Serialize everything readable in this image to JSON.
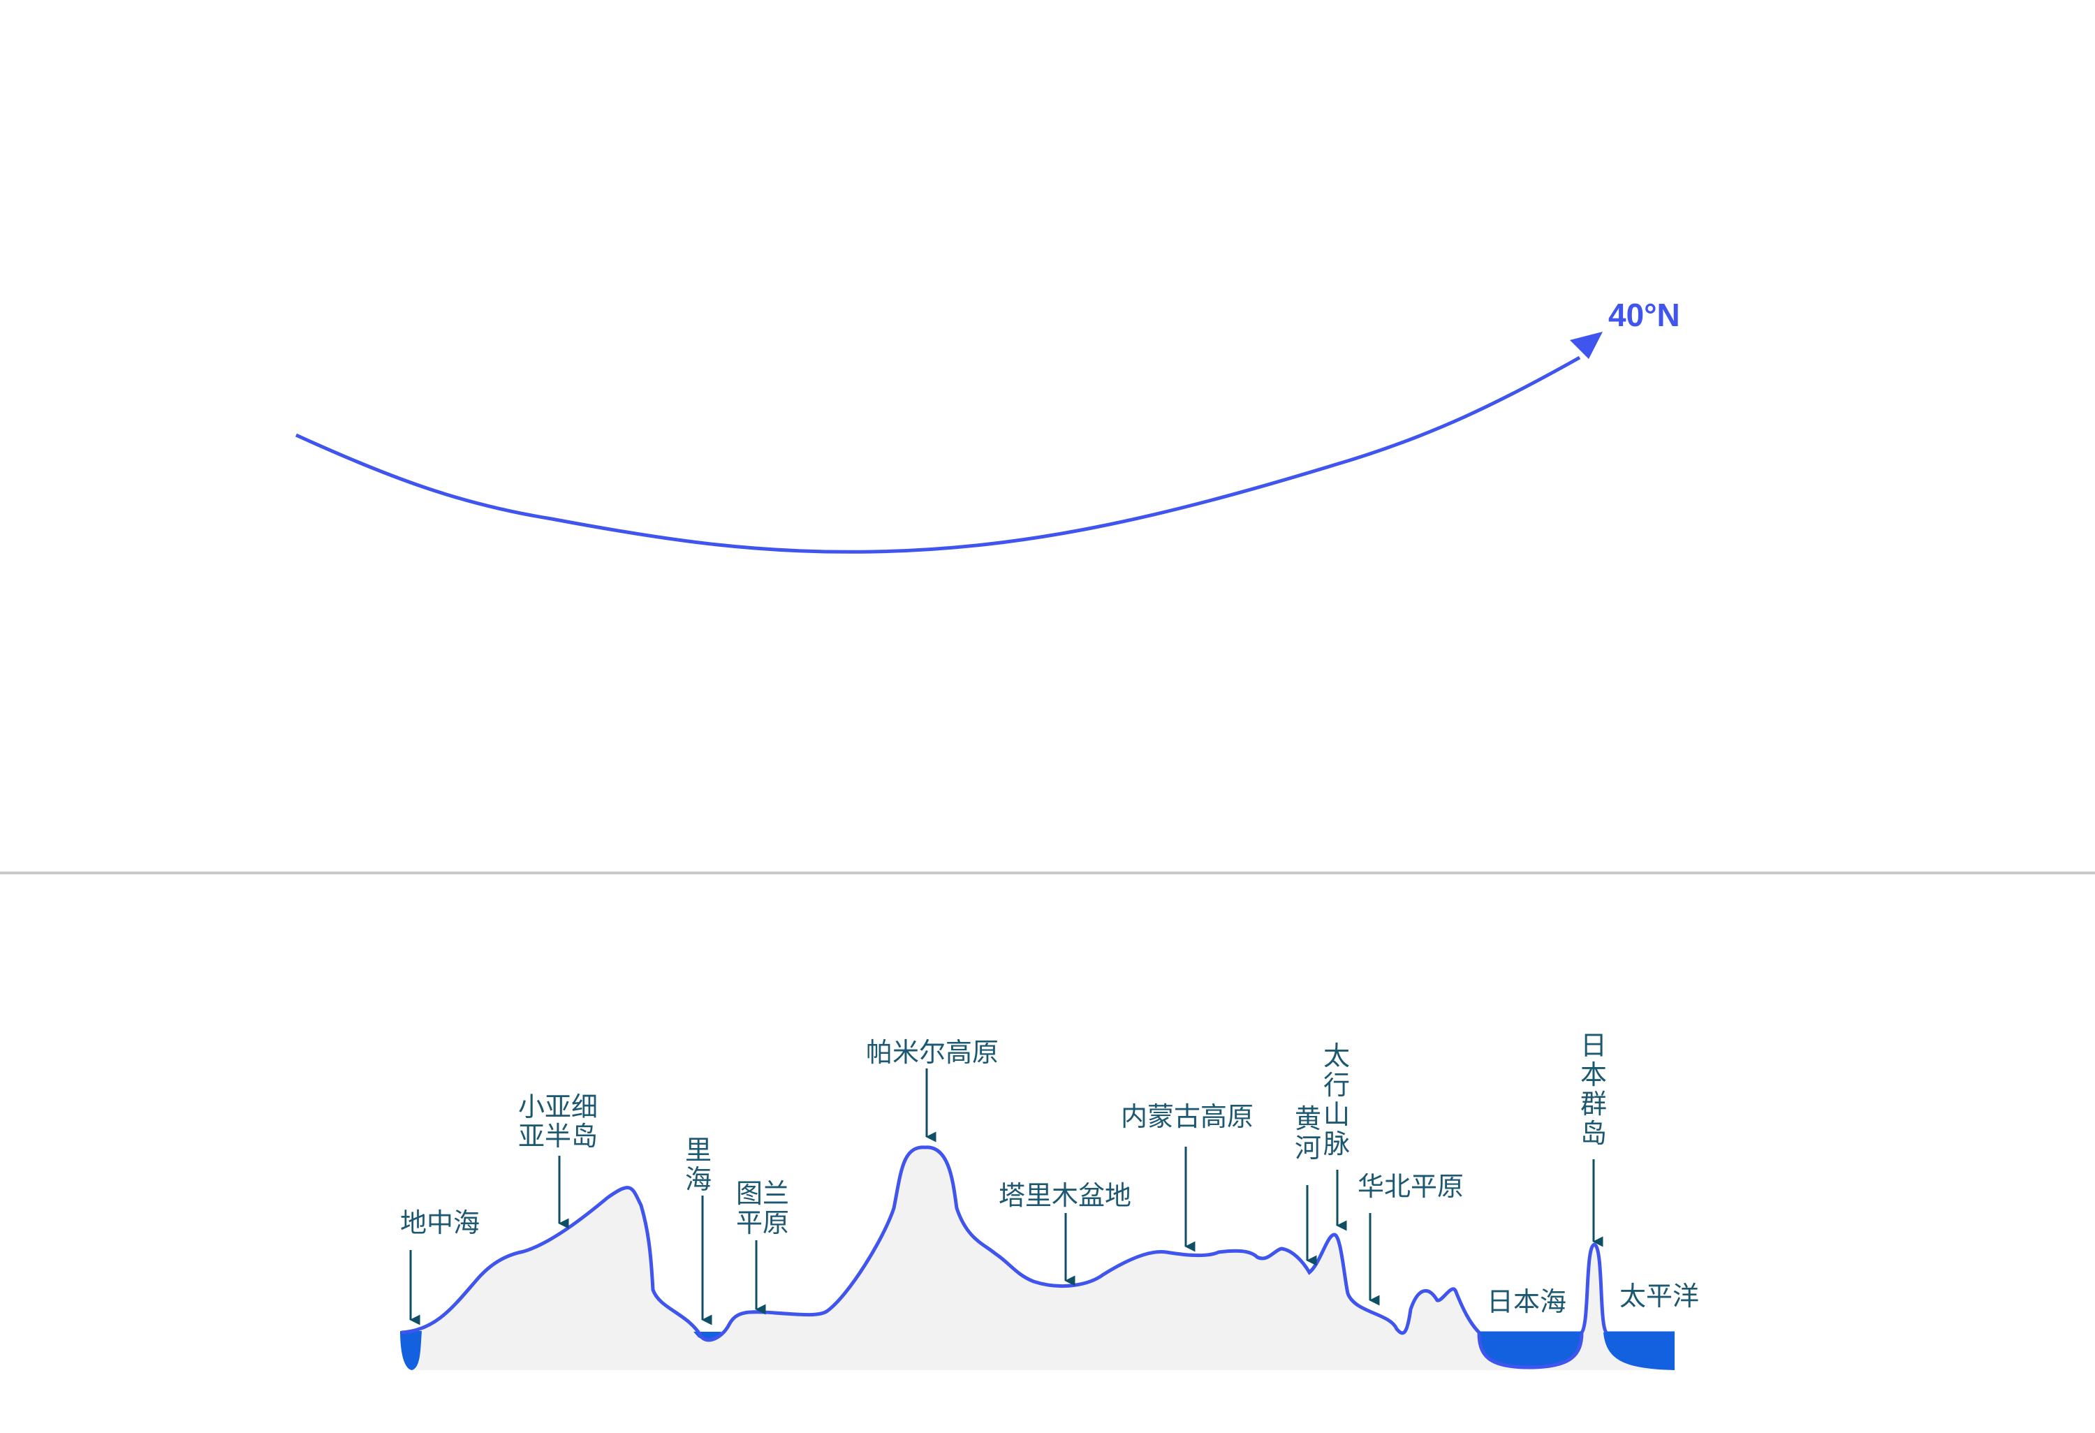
{
  "latitude_label": "40°N",
  "colors": {
    "curve": "#3f55ee",
    "label": "#1d5872",
    "arrow": "#0f4f66",
    "water": "#1461e0",
    "land": "#f2f2f2",
    "divider": "#c8c8c8"
  },
  "labels": {
    "mediterranean": [
      "地中海"
    ],
    "asia_minor": [
      "小亚细",
      "亚半岛"
    ],
    "caspian": [
      "里",
      "海"
    ],
    "turan": [
      "图兰",
      "平原"
    ],
    "pamir": [
      "帕米尔高原"
    ],
    "tarim": [
      "塔里木盆地"
    ],
    "inner_mongolia": [
      "内蒙古高原"
    ],
    "yellow_river": [
      "黄",
      "河"
    ],
    "taihang": [
      "太",
      "行",
      "山",
      "脉"
    ],
    "north_china_plain": [
      "华北平原"
    ],
    "sea_of_japan": [
      "日本海"
    ],
    "japan_islands": [
      "日",
      "本",
      "群",
      "岛"
    ],
    "pacific": [
      "太平洋"
    ]
  }
}
